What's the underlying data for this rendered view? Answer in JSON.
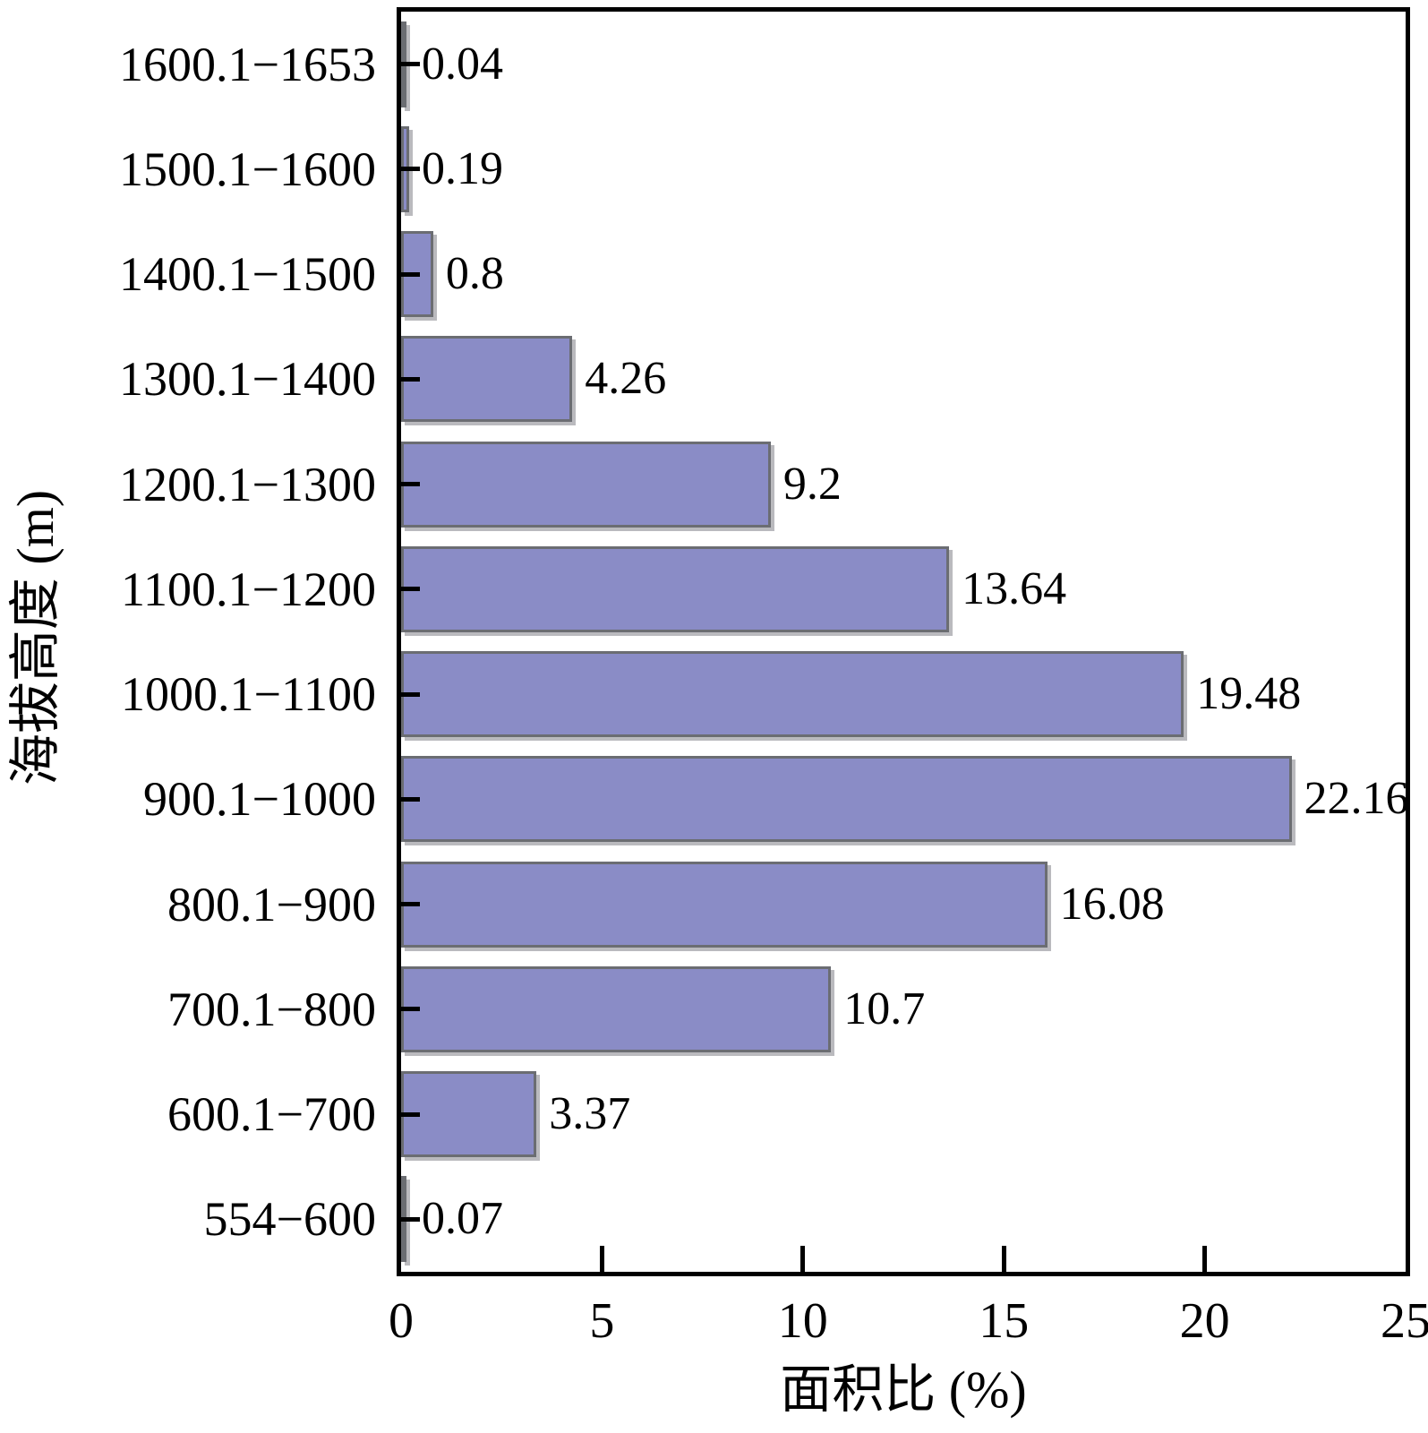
{
  "chart_data": {
    "type": "bar",
    "orientation": "horizontal",
    "title": "",
    "xlabel": "面积比 (%)",
    "ylabel": "海拔高度 (m)",
    "categories": [
      "1600.1−1653",
      "1500.1−1600",
      "1400.1−1500",
      "1300.1−1400",
      "1200.1−1300",
      "1100.1−1200",
      "1000.1−1100",
      "900.1−1000",
      "800.1−900",
      "700.1−800",
      "600.1−700",
      "554−600"
    ],
    "values": [
      0.04,
      0.19,
      0.8,
      4.26,
      9.2,
      13.64,
      19.48,
      22.16,
      16.08,
      10.7,
      3.37,
      0.07
    ],
    "value_labels": [
      "0.04",
      "0.19",
      "0.8",
      "4.26",
      "9.2",
      "13.64",
      "19.48",
      "22.16",
      "16.08",
      "10.7",
      "3.37",
      "0.07"
    ],
    "xlim": [
      0,
      25
    ],
    "xticks": [
      0,
      5,
      10,
      15,
      20,
      25
    ],
    "xtick_labels": [
      "0",
      "5",
      "10",
      "15",
      "20",
      "25"
    ],
    "grid": false,
    "legend_position": "none",
    "colors": {
      "bar_fill": "#8a8cc6",
      "bar_border": "#6b6d72",
      "axis": "#000000",
      "text": "#000000",
      "background": "#ffffff"
    }
  }
}
